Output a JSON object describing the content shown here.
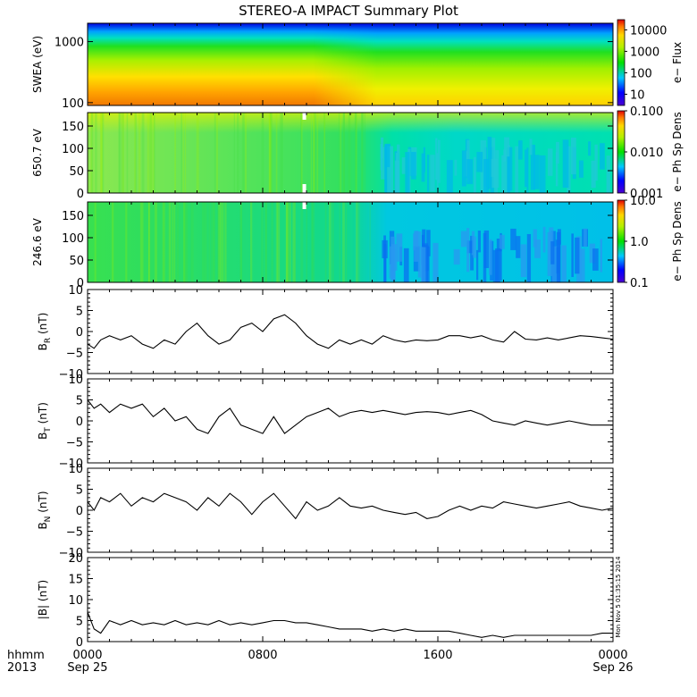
{
  "title": "STEREO-A IMPACT Summary Plot",
  "x_axis": {
    "label_line1": "hhmm",
    "label_line2": "2013",
    "ticks": [
      {
        "hour": 0,
        "line1": "0000",
        "line2": "Sep 25"
      },
      {
        "hour": 8,
        "line1": "0800",
        "line2": ""
      },
      {
        "hour": 16,
        "line1": "1600",
        "line2": ""
      },
      {
        "hour": 24,
        "line1": "0000",
        "line2": "Sep 26"
      }
    ],
    "range_hours": [
      0,
      24
    ]
  },
  "timestamp_note": "Mon Nov  5 01:35:15 2014",
  "colors": {
    "line": "#000000",
    "background": "#ffffff"
  },
  "chart_data": [
    {
      "type": "heatmap",
      "ylabel": "SWEA (eV)",
      "y_scale": "log",
      "ylim": [
        90,
        2000
      ],
      "yticks": [
        "100",
        "1000"
      ],
      "colorbar": {
        "label": "e− Flux",
        "scale": "log",
        "range": [
          3,
          30000
        ],
        "ticks": [
          "10",
          "100",
          "1000",
          "10000"
        ]
      },
      "summary": "Flux highest (~10000) at low energies near 100 eV, falling to ~10 near 2000 eV; low-energy flux drops after ~1100-1300."
    },
    {
      "type": "heatmap",
      "ylabel": "650.7 eV",
      "y_scale": "linear",
      "ylim": [
        0,
        180
      ],
      "yticks": [
        "0",
        "50",
        "100",
        "150"
      ],
      "colorbar": {
        "label": "e− Ph Sp Dens",
        "scale": "log",
        "range": [
          0.001,
          0.1
        ],
        "ticks": [
          "0.001",
          "0.010",
          "0.100"
        ]
      },
      "data_gap_hour": 9.9
    },
    {
      "type": "heatmap",
      "ylabel": "246.6 eV",
      "y_scale": "linear",
      "ylim": [
        0,
        180
      ],
      "yticks": [
        "0",
        "50",
        "100",
        "150"
      ],
      "colorbar": {
        "label": "e− Ph Sp Dens",
        "scale": "log",
        "range": [
          0.1,
          10.0
        ],
        "ticks": [
          "0.1",
          "1.0",
          "10.0"
        ]
      },
      "data_gap_hour": 9.9
    },
    {
      "type": "line",
      "ylabel_main": "B",
      "ylabel_sub": "R",
      "ylabel_unit": " (nT)",
      "ylim": [
        -10,
        10
      ],
      "yticks": [
        "−10",
        "−5",
        "0",
        "5",
        "10"
      ],
      "x": [
        0,
        0.3,
        0.6,
        1,
        1.5,
        2,
        2.5,
        3,
        3.5,
        4,
        4.5,
        5,
        5.5,
        6,
        6.5,
        7,
        7.5,
        8,
        8.5,
        9,
        9.5,
        10,
        10.5,
        11,
        11.5,
        12,
        12.5,
        13,
        13.5,
        14,
        14.5,
        15,
        15.5,
        16,
        16.5,
        17,
        17.5,
        18,
        18.5,
        19,
        19.5,
        20,
        20.5,
        21,
        21.5,
        22,
        22.5,
        23,
        23.5,
        24
      ],
      "y": [
        -3,
        -4,
        -2,
        -1,
        -2,
        -1,
        -3,
        -4,
        -2,
        -3,
        0,
        2,
        -1,
        -3,
        -2,
        1,
        2,
        0,
        3,
        4,
        2,
        -1,
        -3,
        -4,
        -2,
        -3,
        -2,
        -3,
        -1,
        -2,
        -2.5,
        -2,
        -2.2,
        -2,
        -1,
        -1,
        -1.5,
        -1,
        -2,
        -2.5,
        0,
        -1.8,
        -2,
        -1.5,
        -2,
        -1.5,
        -1,
        -1.2,
        -1.5,
        -1.8
      ]
    },
    {
      "type": "line",
      "ylabel_main": "B",
      "ylabel_sub": "T",
      "ylabel_unit": " (nT)",
      "ylim": [
        -10,
        10
      ],
      "yticks": [
        "−10",
        "−5",
        "0",
        "5",
        "10"
      ],
      "x": [
        0,
        0.3,
        0.6,
        1,
        1.5,
        2,
        2.5,
        3,
        3.5,
        4,
        4.5,
        5,
        5.5,
        6,
        6.5,
        7,
        7.5,
        8,
        8.5,
        9,
        9.5,
        10,
        10.5,
        11,
        11.5,
        12,
        12.5,
        13,
        13.5,
        14,
        14.5,
        15,
        15.5,
        16,
        16.5,
        17,
        17.5,
        18,
        18.5,
        19,
        19.5,
        20,
        20.5,
        21,
        21.5,
        22,
        22.5,
        23,
        23.5,
        24
      ],
      "y": [
        5,
        3,
        4,
        2,
        4,
        3,
        4,
        1,
        3,
        0,
        1,
        -2,
        -3,
        1,
        3,
        -1,
        -2,
        -3,
        1,
        -3,
        -1,
        1,
        2,
        3,
        1,
        2,
        2.5,
        2,
        2.5,
        2,
        1.5,
        2,
        2.2,
        2,
        1.5,
        2,
        2.5,
        1.5,
        0,
        -0.5,
        -1,
        0,
        -0.5,
        -1,
        -0.5,
        0,
        -0.5,
        -1,
        -1,
        -1
      ]
    },
    {
      "type": "line",
      "ylabel_main": "B",
      "ylabel_sub": "N",
      "ylabel_unit": " (nT)",
      "ylim": [
        -10,
        10
      ],
      "yticks": [
        "−10",
        "−5",
        "0",
        "5",
        "10"
      ],
      "x": [
        0,
        0.3,
        0.6,
        1,
        1.5,
        2,
        2.5,
        3,
        3.5,
        4,
        4.5,
        5,
        5.5,
        6,
        6.5,
        7,
        7.5,
        8,
        8.5,
        9,
        9.5,
        10,
        10.5,
        11,
        11.5,
        12,
        12.5,
        13,
        13.5,
        14,
        14.5,
        15,
        15.5,
        16,
        16.5,
        17,
        17.5,
        18,
        18.5,
        19,
        19.5,
        20,
        20.5,
        21,
        21.5,
        22,
        22.5,
        23,
        23.5,
        24
      ],
      "y": [
        2,
        0,
        3,
        2,
        4,
        1,
        3,
        2,
        4,
        3,
        2,
        0,
        3,
        1,
        4,
        2,
        -1,
        2,
        4,
        1,
        -2,
        2,
        0,
        1,
        3,
        1,
        0.5,
        1,
        0,
        -0.5,
        -1,
        -0.5,
        -2,
        -1.5,
        0,
        1,
        0,
        1,
        0.5,
        2,
        1.5,
        1,
        0.5,
        1,
        1.5,
        2,
        1,
        0.5,
        0,
        0.5
      ]
    },
    {
      "type": "line",
      "ylabel": "|B| (nT)",
      "ylim": [
        0,
        20
      ],
      "yticks": [
        "0",
        "5",
        "10",
        "15",
        "20"
      ],
      "x": [
        0,
        0.3,
        0.6,
        1,
        1.5,
        2,
        2.5,
        3,
        3.5,
        4,
        4.5,
        5,
        5.5,
        6,
        6.5,
        7,
        7.5,
        8,
        8.5,
        9,
        9.5,
        10,
        10.5,
        11,
        11.5,
        12,
        12.5,
        13,
        13.5,
        14,
        14.5,
        15,
        15.5,
        16,
        16.5,
        17,
        17.5,
        18,
        18.5,
        19,
        19.5,
        20,
        20.5,
        21,
        21.5,
        22,
        22.5,
        23,
        23.5,
        24
      ],
      "y": [
        7,
        3,
        2,
        5,
        4,
        5,
        4,
        4.5,
        4,
        5,
        4,
        4.5,
        4,
        5,
        4,
        4.5,
        4,
        4.5,
        5,
        5,
        4.5,
        4.5,
        4,
        3.5,
        3,
        3,
        3,
        2.5,
        3,
        2.5,
        3,
        2.5,
        2.5,
        2.5,
        2.5,
        2,
        1.5,
        1,
        1.5,
        1,
        1.5,
        1.5,
        1.5,
        1.5,
        1.5,
        1.5,
        1.5,
        1.5,
        2,
        2
      ]
    }
  ]
}
